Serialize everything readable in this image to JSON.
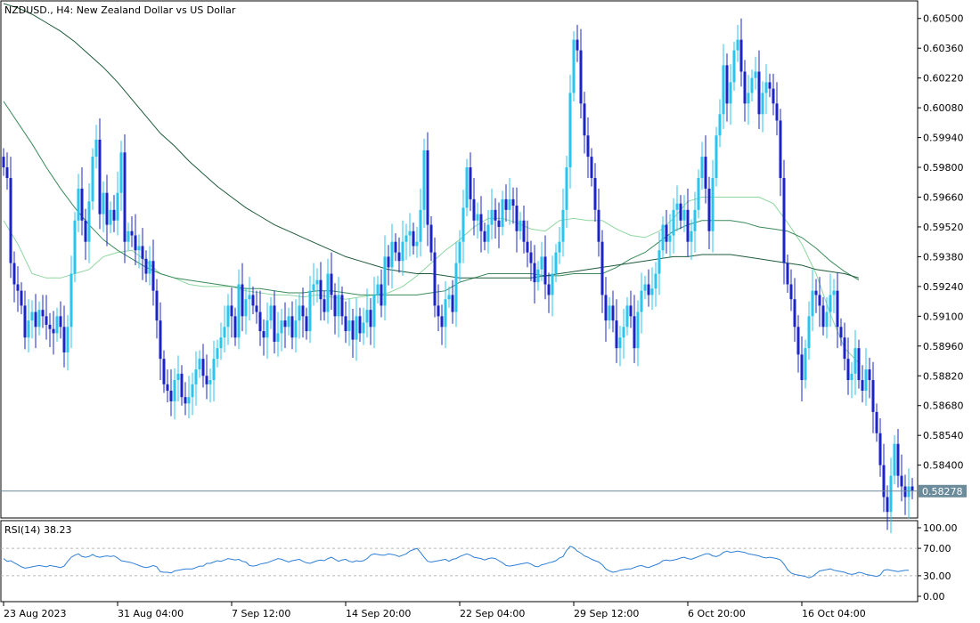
{
  "window": {
    "title": "NZDUSD., H4:  New Zealand Dollar vs US Dollar"
  },
  "colors": {
    "bull_candle": "#29c4f0",
    "bear_candle": "#1c24c8",
    "ma_fast": "#8fd6a0",
    "ma_mid": "#3a8a5a",
    "ma_slow": "#1e5a3a",
    "rsi_line": "#2f7fd6",
    "frame": "#000000",
    "current_price_line": "#6c8c9c",
    "current_price_badge": "#6c8c9c"
  },
  "chart_data": [
    {
      "type": "candlestick",
      "title": "NZDUSD., H4:  New Zealand Dollar vs US Dollar",
      "xlabel": "",
      "ylabel": "",
      "ylim": [
        0.5816,
        0.6057
      ],
      "y_ticks": [
        "0.60500",
        "0.60360",
        "0.60220",
        "0.60080",
        "0.59940",
        "0.59800",
        "0.59660",
        "0.59520",
        "0.59380",
        "0.59240",
        "0.59100",
        "0.58960",
        "0.58820",
        "0.58680",
        "0.58540",
        "0.58400"
      ],
      "x_tick_labels": [
        "23 Aug 2023",
        "31 Aug 04:00",
        "7 Sep 12:00",
        "14 Sep 20:00",
        "22 Sep 04:00",
        "29 Sep 12:00",
        "6 Oct 20:00",
        "16 Oct 04:00"
      ],
      "x_tick_bar_index": [
        0,
        32,
        64,
        96,
        128,
        160,
        192,
        224
      ],
      "current_price": "0.58278",
      "closes": [
        0.598,
        0.5975,
        0.5935,
        0.5925,
        0.5922,
        0.5915,
        0.59,
        0.5908,
        0.5912,
        0.5905,
        0.5913,
        0.591,
        0.5906,
        0.5904,
        0.5902,
        0.591,
        0.5905,
        0.5893,
        0.5905,
        0.593,
        0.5955,
        0.597,
        0.5955,
        0.5945,
        0.5964,
        0.5985,
        0.5993,
        0.5958,
        0.5968,
        0.5953,
        0.596,
        0.5955,
        0.5968,
        0.5987,
        0.5945,
        0.595,
        0.5948,
        0.5941,
        0.5943,
        0.5937,
        0.593,
        0.5936,
        0.5922,
        0.5908,
        0.589,
        0.5878,
        0.5875,
        0.587,
        0.588,
        0.5883,
        0.5872,
        0.5869,
        0.5872,
        0.5878,
        0.5885,
        0.589,
        0.5882,
        0.5878,
        0.588,
        0.589,
        0.5895,
        0.59,
        0.5905,
        0.5915,
        0.591,
        0.59,
        0.5925,
        0.591,
        0.5918,
        0.592,
        0.5915,
        0.5912,
        0.5903,
        0.59,
        0.5908,
        0.5915,
        0.5898,
        0.5902,
        0.5908,
        0.5905,
        0.591,
        0.59,
        0.5908,
        0.5915,
        0.591,
        0.5903,
        0.5922,
        0.5925,
        0.5927,
        0.5918,
        0.5912,
        0.593,
        0.592,
        0.591,
        0.592,
        0.591,
        0.5903,
        0.5908,
        0.5899,
        0.591,
        0.5902,
        0.5907,
        0.5913,
        0.5905,
        0.592,
        0.5925,
        0.5915,
        0.5938,
        0.5933,
        0.5945,
        0.594,
        0.5936,
        0.5945,
        0.5948,
        0.595,
        0.5943,
        0.5945,
        0.596,
        0.5988,
        0.5953,
        0.594,
        0.5915,
        0.591,
        0.5905,
        0.5918,
        0.592,
        0.5912,
        0.5935,
        0.5945,
        0.5961,
        0.598,
        0.5965,
        0.5955,
        0.5958,
        0.595,
        0.5945,
        0.5953,
        0.596,
        0.5955,
        0.5952,
        0.5965,
        0.596,
        0.5965,
        0.5962,
        0.595,
        0.5955,
        0.5945,
        0.594,
        0.5935,
        0.5926,
        0.5932,
        0.5938,
        0.5925,
        0.592,
        0.593,
        0.594,
        0.5945,
        0.596,
        0.598,
        0.6015,
        0.604,
        0.6035,
        0.601,
        0.5995,
        0.5985,
        0.5975,
        0.596,
        0.5945,
        0.592,
        0.5908,
        0.5915,
        0.5908,
        0.5895,
        0.59,
        0.5905,
        0.5915,
        0.591,
        0.5895,
        0.5912,
        0.5922,
        0.5925,
        0.592,
        0.5923,
        0.593,
        0.5941,
        0.5953,
        0.5945,
        0.5948,
        0.596,
        0.5963,
        0.5955,
        0.596,
        0.5945,
        0.595,
        0.596,
        0.5975,
        0.5985,
        0.597,
        0.595,
        0.5975,
        0.5995,
        0.6005,
        0.6028,
        0.601,
        0.602,
        0.6035,
        0.604,
        0.6025,
        0.601,
        0.6015,
        0.6022,
        0.6025,
        0.6005,
        0.6015,
        0.602,
        0.6017,
        0.601,
        0.6002,
        0.5975,
        0.5935,
        0.5925,
        0.5918,
        0.5905,
        0.5892,
        0.588,
        0.5895,
        0.591,
        0.5922,
        0.592,
        0.5915,
        0.5905,
        0.5912,
        0.592,
        0.5922,
        0.5905,
        0.59,
        0.589,
        0.588,
        0.5883,
        0.5895,
        0.588,
        0.5875,
        0.5885,
        0.588,
        0.5865,
        0.5855,
        0.584,
        0.5825,
        0.5818,
        0.5835,
        0.585,
        0.5835,
        0.583,
        0.5825,
        0.583,
        0.5828
      ],
      "series": [
        {
          "name": "",
          "role": "fast moving average",
          "values": [
            0.5955,
            0.5944,
            0.593,
            0.5928,
            0.5928,
            0.593,
            0.5932,
            0.5938,
            0.594,
            0.5941,
            0.5936,
            0.593,
            0.5928,
            0.5925,
            0.5924,
            0.5924,
            0.5924,
            0.5922,
            0.5921,
            0.592,
            0.592,
            0.5919,
            0.592,
            0.5919,
            0.5918,
            0.5919,
            0.592,
            0.5921,
            0.5924,
            0.5929,
            0.5935,
            0.5941,
            0.5946,
            0.5952,
            0.5956,
            0.5956,
            0.5954,
            0.5951,
            0.595,
            0.5955,
            0.5956,
            0.5955,
            0.5955,
            0.5951,
            0.5948,
            0.5947,
            0.595,
            0.5956,
            0.5964,
            0.5966,
            0.5966,
            0.5966,
            0.5966,
            0.5966,
            0.5963,
            0.5954,
            0.5944,
            0.593,
            0.5911,
            0.5895,
            0.5888
          ],
          "x_step": 4
        },
        {
          "name": "",
          "role": "medium moving average",
          "values": [
            0.6011,
            0.6001,
            0.5991,
            0.598,
            0.597,
            0.5961,
            0.5953,
            0.5946,
            0.5941,
            0.5937,
            0.5933,
            0.593,
            0.5928,
            0.5927,
            0.5926,
            0.5925,
            0.5924,
            0.5923,
            0.5923,
            0.5922,
            0.5921,
            0.5921,
            0.5922,
            0.5922,
            0.5921,
            0.592,
            0.592,
            0.592,
            0.592,
            0.592,
            0.5921,
            0.5922,
            0.5926,
            0.5928,
            0.593,
            0.593,
            0.593,
            0.593,
            0.5929,
            0.5929,
            0.593,
            0.593,
            0.593,
            0.5933,
            0.5937,
            0.594,
            0.5945,
            0.595,
            0.5953,
            0.5955,
            0.5955,
            0.5955,
            0.5954,
            0.5952,
            0.5951,
            0.595,
            0.5947,
            0.5942,
            0.5936,
            0.5931,
            0.5927
          ],
          "x_step": 4
        },
        {
          "name": "",
          "role": "slow moving average",
          "values": [
            0.6057,
            0.6055,
            0.6052,
            0.6048,
            0.6044,
            0.6039,
            0.6033,
            0.6027,
            0.602,
            0.6012,
            0.6004,
            0.5996,
            0.599,
            0.5983,
            0.5977,
            0.5971,
            0.5966,
            0.5961,
            0.5957,
            0.5953,
            0.595,
            0.5947,
            0.5944,
            0.5941,
            0.5938,
            0.5936,
            0.5934,
            0.5932,
            0.5931,
            0.593,
            0.593,
            0.5929,
            0.5928,
            0.5928,
            0.5928,
            0.5928,
            0.5928,
            0.5928,
            0.5929,
            0.593,
            0.5931,
            0.5932,
            0.5933,
            0.5934,
            0.5935,
            0.5936,
            0.5937,
            0.5938,
            0.5938,
            0.5939,
            0.5939,
            0.5939,
            0.5938,
            0.5937,
            0.5936,
            0.5935,
            0.5934,
            0.5932,
            0.5931,
            0.593,
            0.5928
          ],
          "x_step": 4
        }
      ]
    },
    {
      "type": "line",
      "title": "RSI(14) 38.23",
      "ylim": [
        0,
        100
      ],
      "y_ticks": [
        "100.00",
        "70.00",
        "30.00",
        "0.00"
      ],
      "levels": [
        70,
        30
      ],
      "series": [
        {
          "name": "RSI(14)",
          "values": [
            55,
            51,
            52,
            49,
            46,
            43,
            41,
            42,
            43,
            44,
            45,
            44,
            43,
            45,
            44,
            43,
            42,
            44,
            51,
            57,
            60,
            62,
            58,
            57,
            58,
            61,
            58,
            57,
            58,
            59,
            58,
            59,
            56,
            52,
            51,
            50,
            49,
            47,
            45,
            43,
            42,
            43,
            45,
            43,
            36,
            35,
            35,
            34,
            37,
            38,
            39,
            40,
            40,
            40,
            42,
            44,
            44,
            48,
            48,
            50,
            52,
            51,
            53,
            55,
            54,
            53,
            54,
            51,
            50,
            45,
            44,
            45,
            47,
            48,
            49,
            51,
            53,
            55,
            54,
            52,
            50,
            52,
            53,
            54,
            51,
            49,
            48,
            50,
            52,
            53,
            52,
            55,
            57,
            54,
            51,
            53,
            54,
            51,
            50,
            52,
            51,
            52,
            55,
            60,
            62,
            61,
            60,
            60,
            62,
            61,
            60,
            58,
            60,
            62,
            66,
            68,
            70,
            64,
            57,
            51,
            50,
            51,
            52,
            53,
            54,
            51,
            54,
            55,
            58,
            60,
            62,
            60,
            57,
            56,
            55,
            53,
            55,
            56,
            55,
            52,
            49,
            45,
            44,
            45,
            46,
            47,
            48,
            49,
            47,
            44,
            43,
            46,
            47,
            49,
            50,
            52,
            56,
            58,
            67,
            73,
            71,
            66,
            63,
            59,
            57,
            54,
            52,
            50,
            46,
            40,
            37,
            35,
            36,
            38,
            39,
            40,
            40,
            42,
            44,
            45,
            43,
            42,
            44,
            46,
            48,
            52,
            53,
            52,
            53,
            54,
            56,
            57,
            55,
            54,
            56,
            58,
            60,
            62,
            62,
            59,
            58,
            60,
            64,
            66,
            64,
            65,
            66,
            65,
            64,
            62,
            61,
            60,
            59,
            57,
            56,
            57,
            56,
            55,
            53,
            47,
            39,
            34,
            32,
            31,
            30,
            29,
            27,
            29,
            33,
            37,
            38,
            39,
            40,
            38,
            37,
            36,
            35,
            33,
            32,
            33,
            35,
            34,
            32,
            31,
            30,
            29,
            31,
            38,
            39,
            38,
            37,
            36,
            37,
            38,
            38
          ]
        }
      ]
    }
  ]
}
